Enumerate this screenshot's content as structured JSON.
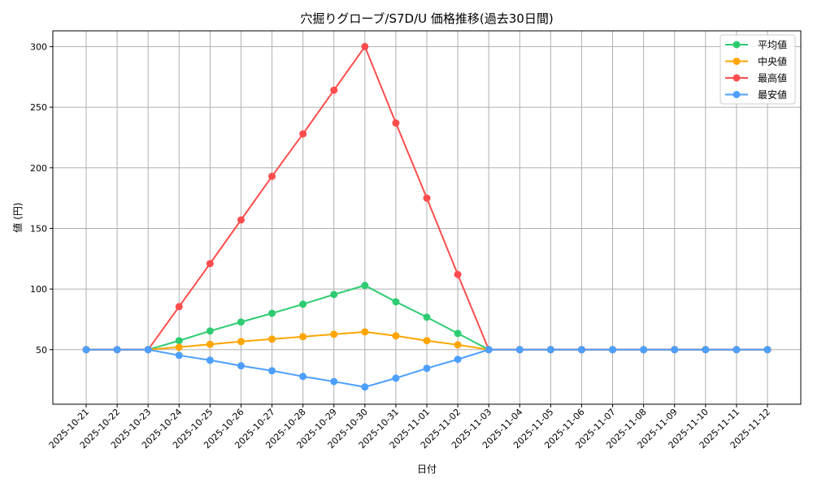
{
  "chart_data": {
    "type": "line",
    "title": "穴掘りグローブ/S7D/U 価格推移(過去30日間)",
    "xlabel": "日付",
    "ylabel": "値 (円)",
    "ylim": [
      5,
      313
    ],
    "yticks": [
      50,
      100,
      150,
      200,
      250,
      300
    ],
    "grid": true,
    "legend_position": "top-right",
    "categories": [
      "2025-10-21",
      "2025-10-22",
      "2025-10-23",
      "2025-10-24",
      "2025-10-25",
      "2025-10-26",
      "2025-10-27",
      "2025-10-28",
      "2025-10-29",
      "2025-10-30",
      "2025-10-31",
      "2025-11-01",
      "2025-11-02",
      "2025-11-03",
      "2025-11-04",
      "2025-11-05",
      "2025-11-06",
      "2025-11-07",
      "2025-11-08",
      "2025-11-09",
      "2025-11-10",
      "2025-11-11",
      "2025-11-12"
    ],
    "series": [
      {
        "name": "平均値",
        "color": "#2ecc71",
        "values": [
          50,
          50,
          50,
          57.4,
          65.4,
          72.8,
          80,
          87.5,
          95.5,
          103,
          89.5,
          76.8,
          63.4,
          50,
          50,
          50,
          50,
          50,
          50,
          50,
          50,
          50,
          50
        ]
      },
      {
        "name": "中央値",
        "color": "#ffa500",
        "values": [
          50,
          50,
          50,
          52,
          54.4,
          56.7,
          58.7,
          60.7,
          62.7,
          64.7,
          61.4,
          57.4,
          54,
          50,
          50,
          50,
          50,
          50,
          50,
          50,
          50,
          50,
          50
        ]
      },
      {
        "name": "最高値",
        "color": "#ff4d4d",
        "values": [
          50,
          50,
          50,
          85.5,
          121,
          157,
          193,
          228,
          264,
          300,
          237,
          175,
          112,
          50,
          50,
          50,
          50,
          50,
          50,
          50,
          50,
          50,
          50
        ]
      },
      {
        "name": "最安値",
        "color": "#4d9fff",
        "values": [
          50,
          50,
          50,
          45.3,
          41.3,
          36.7,
          32.6,
          27.9,
          23.7,
          19.2,
          26.5,
          34.6,
          42,
          50,
          50,
          50,
          50,
          50,
          50,
          50,
          50,
          50,
          50
        ]
      }
    ]
  }
}
